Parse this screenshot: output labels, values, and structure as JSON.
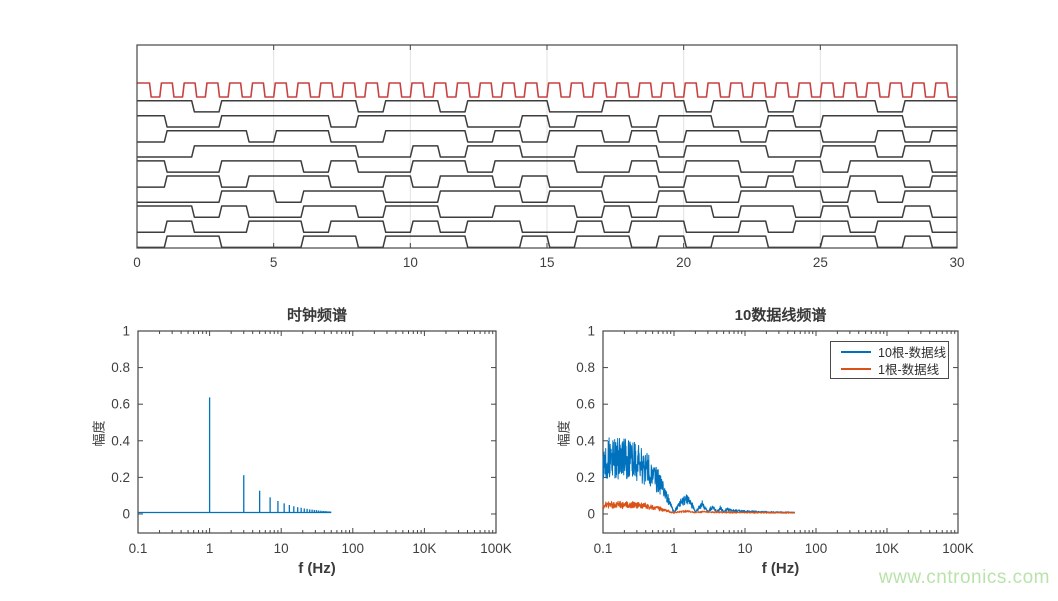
{
  "page": {
    "background": "#ffffff",
    "watermark": {
      "text": "www.cntronics.com",
      "color": "#b9e3aa"
    }
  },
  "colors": {
    "axis": "#454545",
    "tick_text": "#3f3f3f",
    "grid": "#e2e2e2",
    "clock_red": "#c94141",
    "data_black": "#3d3d3d",
    "series_blue": "#0072BD",
    "series_orange": "#D95319"
  },
  "chart_data": [
    {
      "type": "line",
      "id": "digital-waveforms",
      "title": "",
      "x_range": [
        0,
        30
      ],
      "x_tick_labels": [
        "0",
        "5",
        "10",
        "15",
        "20",
        "25",
        "30"
      ],
      "grid_x_values": [
        5,
        10,
        15,
        20,
        25
      ],
      "y_axis": "none (10 stacked digital lines + clock)",
      "clock": {
        "color": "#c94141",
        "cycles": 36,
        "period_units": 0.8333,
        "duty_high": 0.55,
        "starts_high": true
      },
      "data_lines": {
        "color": "#3d3d3d",
        "bit_period_units": 1,
        "count": 10,
        "bits": [
          "110111110110111001110110111011",
          "100111101111001011011001011100",
          "011101100111010110101101100101",
          "001111110010110011101110011011",
          "100111010011011100101100101110",
          "011011100101101001101101001101",
          "000110111001110110010011101011",
          "110100110110011101011011010010",
          "010011011010110010110010110110",
          "011000110111001011010110011010"
        ]
      }
    },
    {
      "type": "stem",
      "id": "clock-spectrum",
      "title": "时钟频谱",
      "xlabel": "f (Hz)",
      "ylabel": "幅度",
      "x_scale": "log",
      "x_tick_labels": [
        "0.1",
        "1",
        "10",
        "100",
        "10K",
        "100K"
      ],
      "y_tick_labels": [
        "0",
        "0.2",
        "0.4",
        "0.6",
        "0.8",
        "1"
      ],
      "y_ticks": [
        0,
        0.2,
        0.4,
        0.6,
        0.8,
        1
      ],
      "ylim": [
        0,
        1
      ],
      "grid": false,
      "series_color": "#0072BD",
      "baseline_y": 0.008,
      "baseline_extent_hz": [
        0.1,
        50
      ],
      "harmonics_hz": [
        1,
        3,
        5,
        7,
        9,
        11,
        13,
        15,
        17,
        19,
        21,
        23,
        25,
        27,
        29,
        31,
        33,
        35,
        37,
        39,
        41,
        43,
        45,
        47,
        49
      ],
      "amplitudes": [
        0.637,
        0.212,
        0.127,
        0.091,
        0.071,
        0.058,
        0.049,
        0.042,
        0.037,
        0.034,
        0.03,
        0.028,
        0.025,
        0.024,
        0.022,
        0.021,
        0.019,
        0.018,
        0.017,
        0.016,
        0.016,
        0.015,
        0.014,
        0.014,
        0.013
      ]
    },
    {
      "type": "line",
      "id": "data-lines-spectrum",
      "title": "10数据线频谱",
      "xlabel": "f (Hz)",
      "ylabel": "幅度",
      "x_scale": "log",
      "x_tick_labels": [
        "0.1",
        "1",
        "10",
        "100",
        "10K",
        "100K"
      ],
      "y_tick_labels": [
        "0",
        "0.2",
        "0.4",
        "0.6",
        "0.8",
        "1"
      ],
      "y_ticks": [
        0,
        0.2,
        0.4,
        0.6,
        0.8,
        1
      ],
      "ylim": [
        0,
        1
      ],
      "grid": false,
      "legend_position": "top-right",
      "legend_entries": [
        {
          "label": "10根-数据线",
          "color": "#0072BD"
        },
        {
          "label": "1根-数据线",
          "color": "#D95319"
        }
      ],
      "series": [
        {
          "name": "10根-数据线",
          "color": "#0072BD",
          "model": "noisy |sin(pi*f)/(pi*f)| envelope, nulls at integer Hz",
          "x_extent_hz": [
            0.1,
            50
          ],
          "envelope_points": [
            [
              0.1,
              0.3
            ],
            [
              0.2,
              0.3
            ],
            [
              0.3,
              0.28
            ],
            [
              0.45,
              0.235
            ],
            [
              0.6,
              0.175
            ],
            [
              0.75,
              0.115
            ],
            [
              0.9,
              0.045
            ],
            [
              1.0,
              0.006
            ],
            [
              1.25,
              0.06
            ],
            [
              1.5,
              0.085
            ],
            [
              1.8,
              0.045
            ],
            [
              2.0,
              0.008
            ],
            [
              2.5,
              0.052
            ],
            [
              3.0,
              0.008
            ],
            [
              3.5,
              0.038
            ],
            [
              4.0,
              0.008
            ],
            [
              4.5,
              0.029
            ],
            [
              5.0,
              0.008
            ],
            [
              5.5,
              0.022
            ],
            [
              7.0,
              0.016
            ],
            [
              10,
              0.011
            ],
            [
              20,
              0.007
            ],
            [
              50,
              0.005
            ]
          ],
          "noise_ratio": 0.75,
          "seed": 13
        },
        {
          "name": "1根-数据线",
          "color": "#D95319",
          "model": "noisy |sin(pi*f)/(pi*f)| envelope, ~1/8 amplitude of 10-line sum",
          "x_extent_hz": [
            0.1,
            50
          ],
          "envelope_points": [
            [
              0.1,
              0.045
            ],
            [
              0.25,
              0.047
            ],
            [
              0.4,
              0.04
            ],
            [
              0.6,
              0.028
            ],
            [
              0.8,
              0.014
            ],
            [
              1.0,
              0.004
            ],
            [
              1.5,
              0.013
            ],
            [
              2.0,
              0.005
            ],
            [
              2.5,
              0.009
            ],
            [
              3.5,
              0.007
            ],
            [
              5.0,
              0.006
            ],
            [
              10,
              0.005
            ],
            [
              50,
              0.004
            ]
          ],
          "noise_ratio": 0.8,
          "seed": 99
        }
      ]
    }
  ]
}
